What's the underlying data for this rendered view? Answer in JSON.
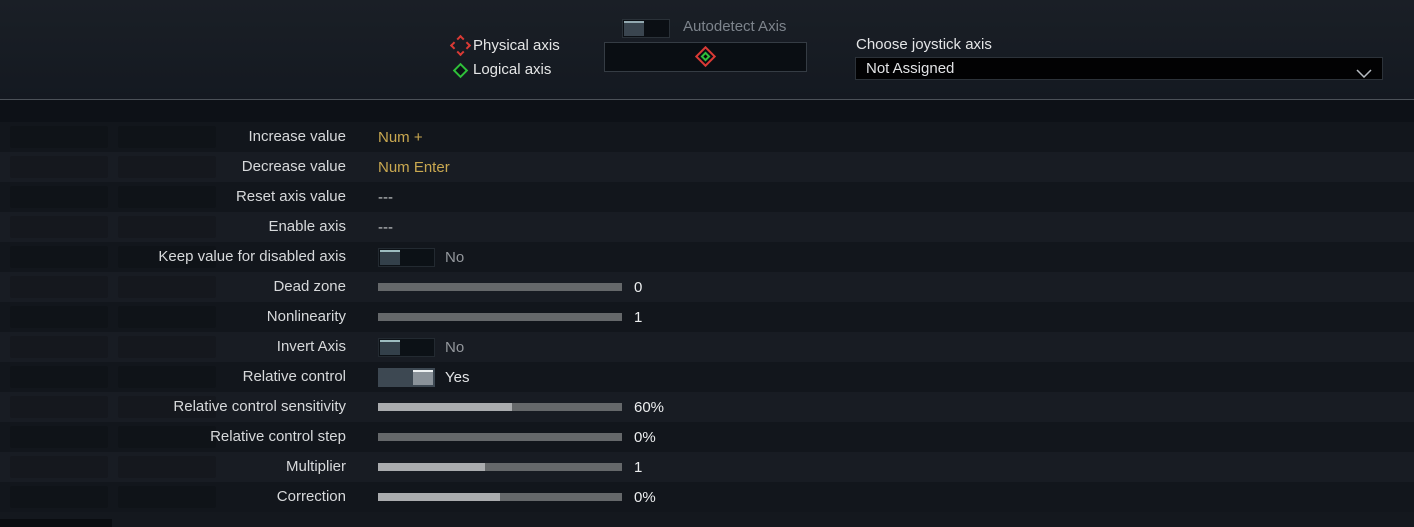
{
  "header": {
    "legend": {
      "physical_label": "Physical axis",
      "logical_label": "Logical axis"
    },
    "autodetect": {
      "label": "Autodetect Axis",
      "on": false
    },
    "joystick": {
      "label": "Choose joystick axis",
      "value": "Not Assigned"
    }
  },
  "colors": {
    "physical_axis_icon": "#d93a35",
    "logical_axis_icon": "#2fbf3a",
    "binding_assigned": "#c9a850",
    "slider_fill": "#aaacae",
    "slider_track": "#65686a",
    "row_light": "#181c23",
    "row_dark": "#12161c"
  },
  "rows": [
    {
      "label": "Increase value",
      "type": "binding",
      "value": "Num +"
    },
    {
      "label": "Decrease value",
      "type": "binding",
      "value": "Num Enter"
    },
    {
      "label": "Reset axis value",
      "type": "binding_empty",
      "value": "---"
    },
    {
      "label": "Enable axis",
      "type": "binding_empty",
      "value": "---"
    },
    {
      "label": "Keep value for disabled axis",
      "type": "toggle",
      "value": "No",
      "on": false
    },
    {
      "label": "Dead zone",
      "type": "slider",
      "value": "0",
      "fill_pct": 0
    },
    {
      "label": "Nonlinearity",
      "type": "slider",
      "value": "1",
      "fill_pct": 0
    },
    {
      "label": "Invert Axis",
      "type": "toggle",
      "value": "No",
      "on": false
    },
    {
      "label": "Relative control",
      "type": "toggle",
      "value": "Yes",
      "on": true
    },
    {
      "label": "Relative control sensitivity",
      "type": "slider",
      "value": "60%",
      "fill_pct": 55
    },
    {
      "label": "Relative control step",
      "type": "slider",
      "value": "0%",
      "fill_pct": 0
    },
    {
      "label": "Multiplier",
      "type": "slider",
      "value": "1",
      "fill_pct": 44
    },
    {
      "label": "Correction",
      "type": "slider",
      "value": "0%",
      "fill_pct": 50
    }
  ]
}
